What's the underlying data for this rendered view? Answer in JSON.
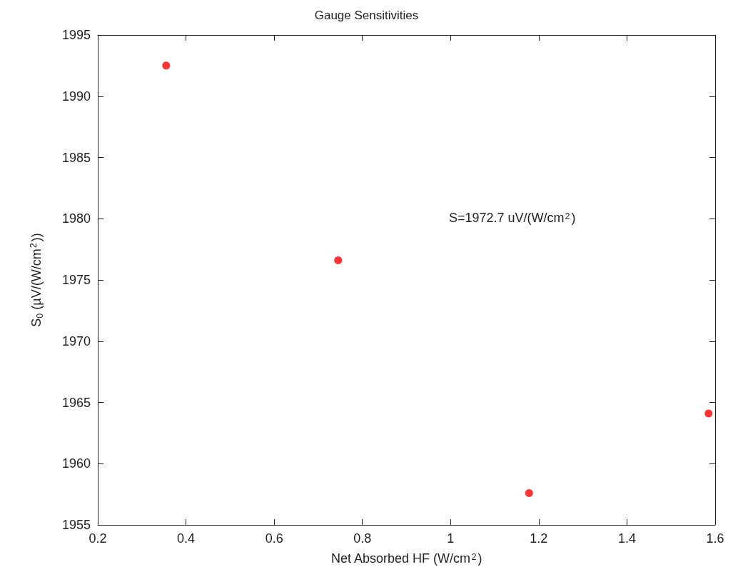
{
  "chart_data": {
    "type": "scatter",
    "title": "Gauge Sensitivities",
    "xlabel": "Net Absorbed HF (W/cm$^{2}$)",
    "ylabel": "S$_{0}$ (µV/(W/cm$^{2}$))",
    "annotations": [
      "S=1972.7 uV/(W/cm$^{2}$)"
    ],
    "x": [
      0.355,
      0.745,
      1.178,
      1.585
    ],
    "series": [
      {
        "color": "#ff0000",
        "values": [
          1992.5,
          1976.6,
          1957.6,
          1964.1
        ]
      }
    ],
    "xlim": [
      0.2,
      1.6
    ],
    "xticks": [
      0.2,
      0.4,
      0.6,
      0.8,
      1,
      1.2,
      1.4,
      1.6
    ],
    "ylim": [
      1955,
      1995
    ],
    "yticks": [
      1955,
      1960,
      1965,
      1970,
      1975,
      1980,
      1985,
      1990,
      1995
    ],
    "grid": false,
    "marker": "circle"
  }
}
